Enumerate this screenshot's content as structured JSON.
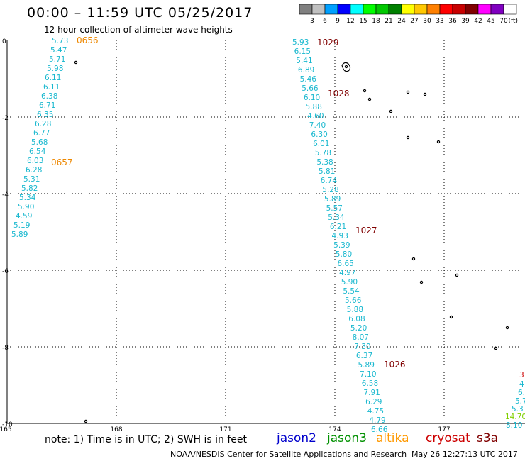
{
  "header": {
    "title": "00:00  –  11:59 UTC 05/25/2017",
    "subtitle": "12 hour collection of altimeter wave heights"
  },
  "colorbar": {
    "unit": "(ft)",
    "colors": [
      "#808080",
      "#c0c0c0",
      "#00a0ff",
      "#0000ff",
      "#00ffff",
      "#00ff00",
      "#00c800",
      "#008000",
      "#ffff00",
      "#ffc800",
      "#ff8000",
      "#ff0000",
      "#c80000",
      "#800000",
      "#ff00ff",
      "#8000c0",
      "#ffffff"
    ],
    "labels": [
      "3",
      "6",
      "9",
      "12",
      "15",
      "18",
      "21",
      "24",
      "27",
      "30",
      "33",
      "36",
      "39",
      "42",
      "45",
      "70"
    ]
  },
  "map": {
    "lon_ticks": [
      "165",
      "168",
      "171",
      "174",
      "177"
    ],
    "lat_ticks": [
      "0",
      "-2",
      "-4",
      "-6",
      "-8",
      "-10"
    ],
    "left_track": [
      "5.73",
      "5.47",
      "5.71",
      "5.98",
      "6.11",
      "6.11",
      "6.38",
      "6.71",
      "6.35",
      "6.28",
      "6.77",
      "5.68",
      "6.54",
      "6.03",
      "6.28",
      "5.31",
      "5.82",
      "5.34",
      "5.90",
      "4.59",
      "5.19",
      "5.89"
    ],
    "center_track": [
      "5.93",
      "6.15",
      "5.41",
      "6.89",
      "5.46",
      "5.66",
      "6.10",
      "5.88",
      "4.60",
      "7.40",
      "6.30",
      "6.01",
      "5.78",
      "5.38",
      "5.81",
      "6.74",
      "5.28",
      "5.89",
      "5.57",
      "5.34",
      "6.21",
      "4.93",
      "5.39",
      "5.80",
      "6.65",
      "4.97",
      "5.90",
      "5.54",
      "5.66",
      "5.88",
      "6.08",
      "5.20",
      "8.07",
      "7.30",
      "6.37",
      "5.89",
      "7.10",
      "6.58",
      "7.91",
      "6.29",
      "4.75",
      "4.79",
      "6.66"
    ],
    "right_track": [
      "3",
      "4",
      "6.",
      "5.7",
      "5.3",
      "14.70",
      "8.10"
    ],
    "time_labels": [
      "0656",
      "0657",
      "1029",
      "1028",
      "1027",
      "1026"
    ]
  },
  "footer": {
    "note": "note: 1) Time is in UTC; 2) SWH is in feet",
    "satellites": [
      {
        "name": "jason2",
        "color": "#0000cc"
      },
      {
        "name": "jason3",
        "color": "#009000"
      },
      {
        "name": "altika",
        "color": "#ff9900"
      },
      {
        "name": "cryosat",
        "color": "#cc0000"
      },
      {
        "name": "s3a",
        "color": "#800000"
      }
    ],
    "credit": "NOAA/NESDIS Center for Satellite Applications and Research",
    "timestamp": "May 26 12:27:13 UTC 2017"
  }
}
